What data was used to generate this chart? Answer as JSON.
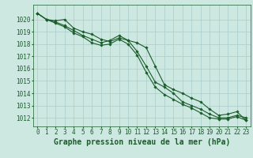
{
  "title": "Graphe pression niveau de la mer (hPa)",
  "background_color": "#cce8e0",
  "grid_color": "#aacccc",
  "line_color": "#1a5c2a",
  "xlim": [
    -0.5,
    23.5
  ],
  "ylim": [
    1011.3,
    1021.2
  ],
  "yticks": [
    1012,
    1013,
    1014,
    1015,
    1016,
    1017,
    1018,
    1019,
    1020
  ],
  "xticks": [
    0,
    1,
    2,
    3,
    4,
    5,
    6,
    7,
    8,
    9,
    10,
    11,
    12,
    13,
    14,
    15,
    16,
    17,
    18,
    19,
    20,
    21,
    22,
    23
  ],
  "series1": [
    1020.5,
    1020.0,
    1019.9,
    1020.0,
    1019.3,
    1019.0,
    1018.8,
    1018.4,
    1018.2,
    1018.5,
    1018.3,
    1018.1,
    1017.7,
    1016.2,
    1014.7,
    1014.3,
    1014.0,
    1013.6,
    1013.3,
    1012.7,
    1012.2,
    1012.3,
    1012.5,
    1011.8
  ],
  "series2": [
    1020.5,
    1020.0,
    1019.8,
    1019.5,
    1019.1,
    1018.7,
    1018.4,
    1018.1,
    1018.3,
    1018.7,
    1018.3,
    1017.4,
    1016.2,
    1014.9,
    1014.5,
    1014.0,
    1013.3,
    1013.0,
    1012.7,
    1012.3,
    1012.0,
    1012.0,
    1012.2,
    1012.0
  ],
  "series3": [
    1020.5,
    1020.0,
    1019.7,
    1019.4,
    1018.9,
    1018.6,
    1018.1,
    1017.9,
    1018.0,
    1018.4,
    1018.0,
    1017.1,
    1015.7,
    1014.5,
    1013.9,
    1013.5,
    1013.1,
    1012.8,
    1012.4,
    1012.0,
    1011.9,
    1011.9,
    1012.1,
    1011.8
  ],
  "title_fontsize": 7,
  "tick_fontsize": 5.5
}
